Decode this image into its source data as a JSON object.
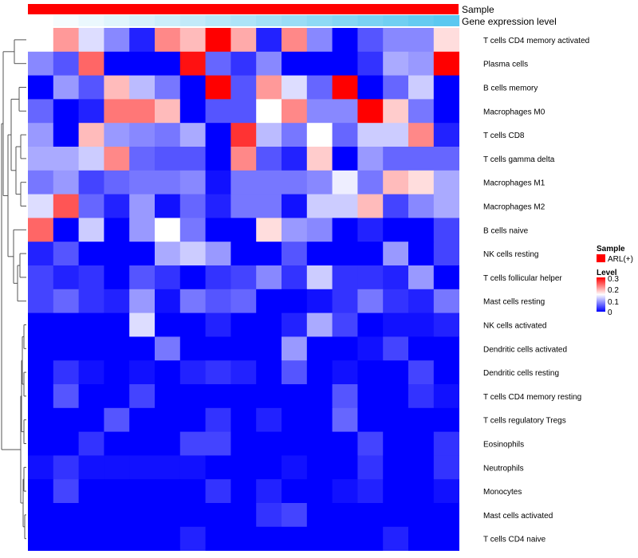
{
  "chart_data": {
    "type": "heatmap",
    "annotation_tracks": [
      {
        "name": "Sample",
        "value": "ARL(+)",
        "color": "#ff0000"
      },
      {
        "name": "Gene expression level"
      }
    ],
    "rows": [
      "T cells CD4 memory activated",
      "Plasma cells",
      "B cells memory",
      "Macrophages M0",
      "T cells CD8",
      "T cells gamma delta",
      "Macrophages M1",
      "Macrophages M2",
      "B cells naive",
      "NK cells resting",
      "T cells follicular helper",
      "Mast cells resting",
      "NK cells activated",
      "Dendritic cells activated",
      "Dendritic cells resting",
      "T cells CD4 memory resting",
      "T cells regulatory  Tregs",
      "Eosinophils",
      "Neutrophils",
      "Monocytes",
      "Mast cells activated",
      "T cells CD4 naive"
    ],
    "values": [
      [
        0.15,
        0.21,
        0.13,
        0.08,
        0.02,
        0.22,
        0.19,
        0.3,
        0.2,
        0.02,
        0.22,
        0.08,
        0.0,
        0.05,
        0.08,
        0.08,
        0.17
      ],
      [
        0.08,
        0.05,
        0.24,
        0.0,
        0.0,
        0.0,
        0.29,
        0.06,
        0.03,
        0.08,
        0.0,
        0.0,
        0.0,
        0.03,
        0.1,
        0.09,
        0.3
      ],
      [
        0.0,
        0.09,
        0.05,
        0.19,
        0.11,
        0.07,
        0.0,
        0.3,
        0.05,
        0.21,
        0.13,
        0.06,
        0.3,
        0.0,
        0.06,
        0.12,
        0.0
      ],
      [
        0.06,
        0.0,
        0.02,
        0.23,
        0.23,
        0.19,
        0.0,
        0.05,
        0.05,
        0.15,
        0.22,
        0.08,
        0.08,
        0.3,
        0.18,
        0.07,
        0.0
      ],
      [
        0.09,
        0.0,
        0.19,
        0.09,
        0.08,
        0.07,
        0.1,
        0.0,
        0.27,
        0.11,
        0.07,
        0.15,
        0.06,
        0.12,
        0.12,
        0.22,
        0.02
      ],
      [
        0.1,
        0.1,
        0.12,
        0.22,
        0.06,
        0.05,
        0.05,
        0.0,
        0.22,
        0.05,
        0.02,
        0.18,
        0.0,
        0.09,
        0.06,
        0.06,
        0.06
      ],
      [
        0.07,
        0.09,
        0.04,
        0.06,
        0.07,
        0.07,
        0.08,
        0.01,
        0.07,
        0.07,
        0.07,
        0.08,
        0.14,
        0.07,
        0.19,
        0.17,
        0.1
      ],
      [
        0.13,
        0.25,
        0.06,
        0.02,
        0.09,
        0.01,
        0.06,
        0.02,
        0.07,
        0.07,
        0.01,
        0.12,
        0.12,
        0.19,
        0.04,
        0.08,
        0.1
      ],
      [
        0.24,
        0.0,
        0.12,
        0.0,
        0.09,
        0.15,
        0.07,
        0.0,
        0.0,
        0.17,
        0.09,
        0.08,
        0.0,
        0.02,
        0.0,
        0.0,
        0.04
      ],
      [
        0.02,
        0.05,
        0.0,
        0.0,
        0.0,
        0.1,
        0.12,
        0.09,
        0.0,
        0.0,
        0.05,
        0.0,
        0.0,
        0.0,
        0.09,
        0.0,
        0.04
      ],
      [
        0.04,
        0.02,
        0.03,
        0.0,
        0.05,
        0.03,
        0.0,
        0.03,
        0.04,
        0.08,
        0.03,
        0.12,
        0.03,
        0.03,
        0.02,
        0.09,
        0.0
      ],
      [
        0.04,
        0.06,
        0.03,
        0.02,
        0.09,
        0.01,
        0.07,
        0.05,
        0.06,
        0.0,
        0.0,
        0.01,
        0.03,
        0.07,
        0.03,
        0.02,
        0.07
      ],
      [
        0.0,
        0.0,
        0.0,
        0.0,
        0.13,
        0.0,
        0.0,
        0.02,
        0.0,
        0.0,
        0.02,
        0.1,
        0.04,
        0.0,
        0.01,
        0.01,
        0.02
      ],
      [
        0.0,
        0.0,
        0.0,
        0.0,
        0.0,
        0.07,
        0.0,
        0.0,
        0.0,
        0.0,
        0.09,
        0.0,
        0.0,
        0.01,
        0.04,
        0.0,
        0.0
      ],
      [
        0.0,
        0.03,
        0.01,
        0.0,
        0.01,
        0.0,
        0.02,
        0.03,
        0.02,
        0.0,
        0.05,
        0.0,
        0.01,
        0.0,
        0.0,
        0.04,
        0.0
      ],
      [
        0.0,
        0.05,
        0.0,
        0.0,
        0.04,
        0.0,
        0.0,
        0.0,
        0.0,
        0.0,
        0.0,
        0.0,
        0.05,
        0.0,
        0.0,
        0.03,
        0.01
      ],
      [
        0.0,
        0.0,
        0.0,
        0.05,
        0.0,
        0.0,
        0.0,
        0.03,
        0.0,
        0.02,
        0.0,
        0.0,
        0.06,
        0.0,
        0.0,
        0.0,
        0.0
      ],
      [
        0.0,
        0.0,
        0.03,
        0.0,
        0.0,
        0.0,
        0.04,
        0.04,
        0.0,
        0.0,
        0.0,
        0.0,
        0.0,
        0.04,
        0.0,
        0.0,
        0.03
      ],
      [
        0.01,
        0.03,
        0.01,
        0.01,
        0.01,
        0.01,
        0.01,
        0.0,
        0.0,
        0.0,
        0.01,
        0.0,
        0.0,
        0.03,
        0.0,
        0.0,
        0.03
      ],
      [
        0.0,
        0.04,
        0.0,
        0.0,
        0.0,
        0.0,
        0.0,
        0.03,
        0.0,
        0.02,
        0.0,
        0.0,
        0.01,
        0.02,
        0.0,
        0.0,
        0.01
      ],
      [
        0.0,
        0.0,
        0.0,
        0.0,
        0.0,
        0.0,
        0.0,
        0.0,
        0.0,
        0.03,
        0.04,
        0.0,
        0.0,
        0.0,
        0.0,
        0.0,
        0.0
      ],
      [
        0.0,
        0.0,
        0.0,
        0.0,
        0.0,
        0.0,
        0.02,
        0.0,
        0.0,
        0.0,
        0.0,
        0.0,
        0.0,
        0.0,
        0.02,
        0.0,
        0.0
      ]
    ],
    "color_scale": {
      "min": 0,
      "max": 0.3,
      "colors": [
        "#0000ff",
        "#ffffff",
        "#ff0000"
      ]
    },
    "legend": {
      "placement": "right",
      "sample_title": "Sample",
      "sample_label": "ARL(+)",
      "level_title": "Level",
      "level_ticks": [
        "0.3",
        "0.2",
        "0.1",
        "0"
      ]
    }
  }
}
